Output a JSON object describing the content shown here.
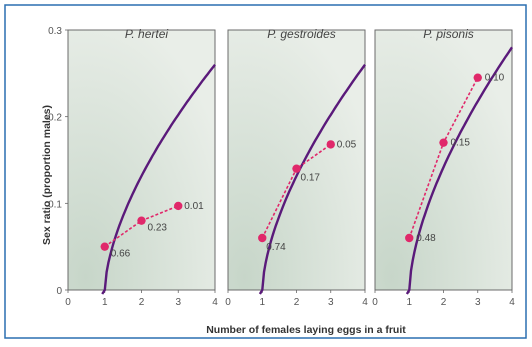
{
  "figure": {
    "xlabel": "Number of females laying eggs in a fruit",
    "ylabel": "Sex ratio (proportion males)",
    "colors": {
      "theory_curve": "#5a1a7a",
      "observed": "#e0286a",
      "frame": "#2a6fb0",
      "panel_bg_light": "#e4ebe4",
      "panel_bg_dark": "#c8d8cc"
    }
  },
  "chart_data": [
    {
      "type": "line",
      "title": "P. hertei",
      "x_ticks": [
        "0",
        "1",
        "2",
        "3",
        "4"
      ],
      "y_ticks": [
        "0",
        "0.1",
        "0.2",
        "0.3"
      ],
      "xlim": [
        0,
        4
      ],
      "ylim": [
        0,
        0.3
      ],
      "theory_curve": {
        "curve_max_y": 0.26
      },
      "series": [
        {
          "x": [
            1,
            2,
            3
          ],
          "y": [
            0.05,
            0.08,
            0.097
          ],
          "labels": [
            "0.66",
            "0.23",
            "0.01"
          ]
        }
      ]
    },
    {
      "type": "line",
      "title": "P. gestroides",
      "x_ticks": [
        "0",
        "1",
        "2",
        "3",
        "4"
      ],
      "y_ticks": [],
      "xlim": [
        0,
        4
      ],
      "ylim": [
        0,
        0.3
      ],
      "theory_curve": {
        "curve_max_y": 0.26
      },
      "series": [
        {
          "x": [
            1,
            2,
            3
          ],
          "y": [
            0.06,
            0.14,
            0.168
          ],
          "labels": [
            "0.74",
            "0.17",
            "0.05"
          ]
        }
      ]
    },
    {
      "type": "line",
      "title": "P. pisonis",
      "x_ticks": [
        "0",
        "1",
        "2",
        "3",
        "4"
      ],
      "y_ticks": [],
      "xlim": [
        0,
        4
      ],
      "ylim": [
        0,
        0.3
      ],
      "theory_curve": {
        "curve_max_y": 0.28
      },
      "series": [
        {
          "x": [
            1,
            2,
            3
          ],
          "y": [
            0.06,
            0.17,
            0.245
          ],
          "labels": [
            "0.48",
            "0.15",
            "0.10"
          ]
        }
      ]
    }
  ]
}
